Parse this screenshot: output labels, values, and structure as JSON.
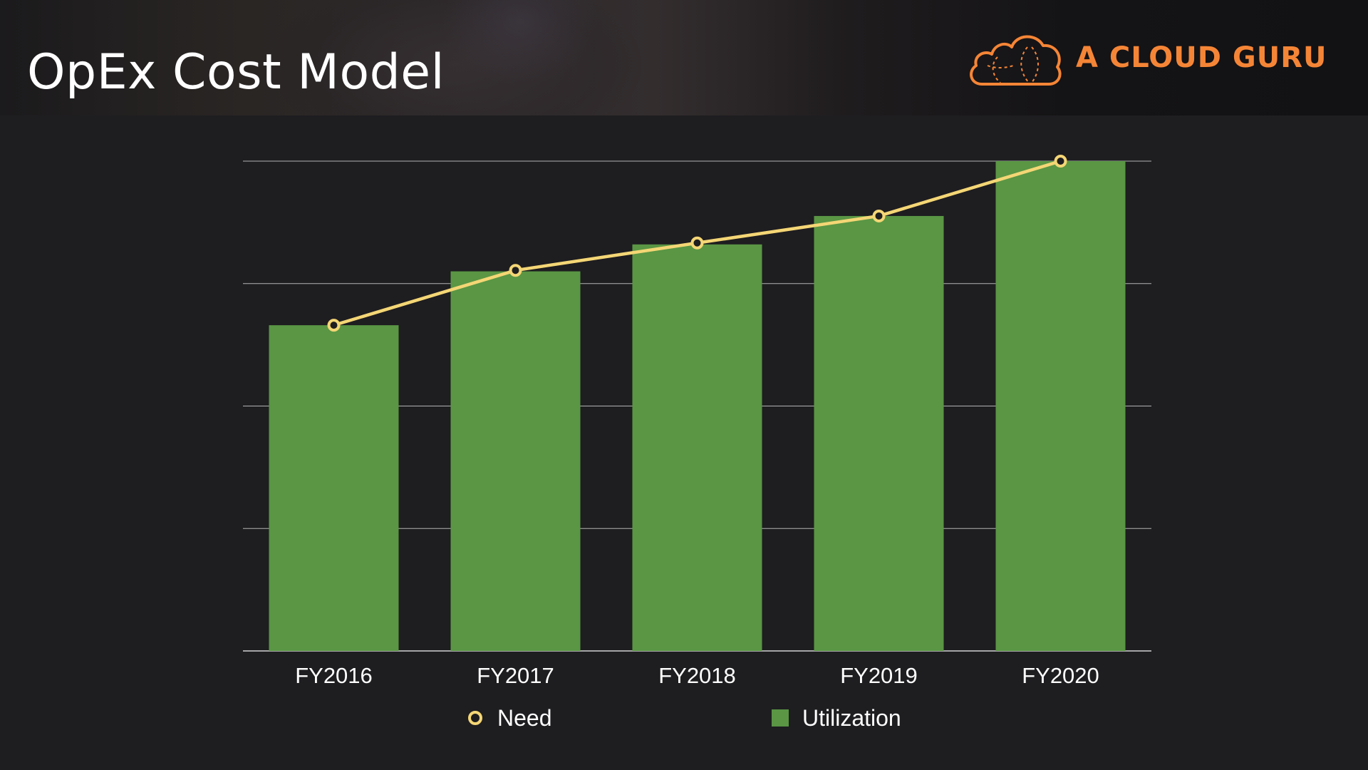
{
  "slide": {
    "title": "OpEx Cost Model",
    "brand": "A CLOUD GURU",
    "brand_icon": "cloud-icon"
  },
  "colors": {
    "background": "#1e1d20",
    "bar": "#5a9644",
    "line": "#f4d675",
    "brand": "#f58536",
    "grid": "#e6e6e6"
  },
  "chart_data": {
    "type": "bar",
    "categories": [
      "FY2016",
      "FY2017",
      "FY2018",
      "FY2019",
      "FY2020"
    ],
    "ylim": [
      0,
      100
    ],
    "grid": true,
    "legend_position": "bottom",
    "series": [
      {
        "name": "Utilization",
        "kind": "bar",
        "values": [
          66.5,
          77.5,
          83,
          88.8,
          100
        ]
      },
      {
        "name": "Need",
        "kind": "line",
        "values": [
          66.5,
          77.7,
          83.3,
          88.8,
          100
        ]
      }
    ]
  }
}
